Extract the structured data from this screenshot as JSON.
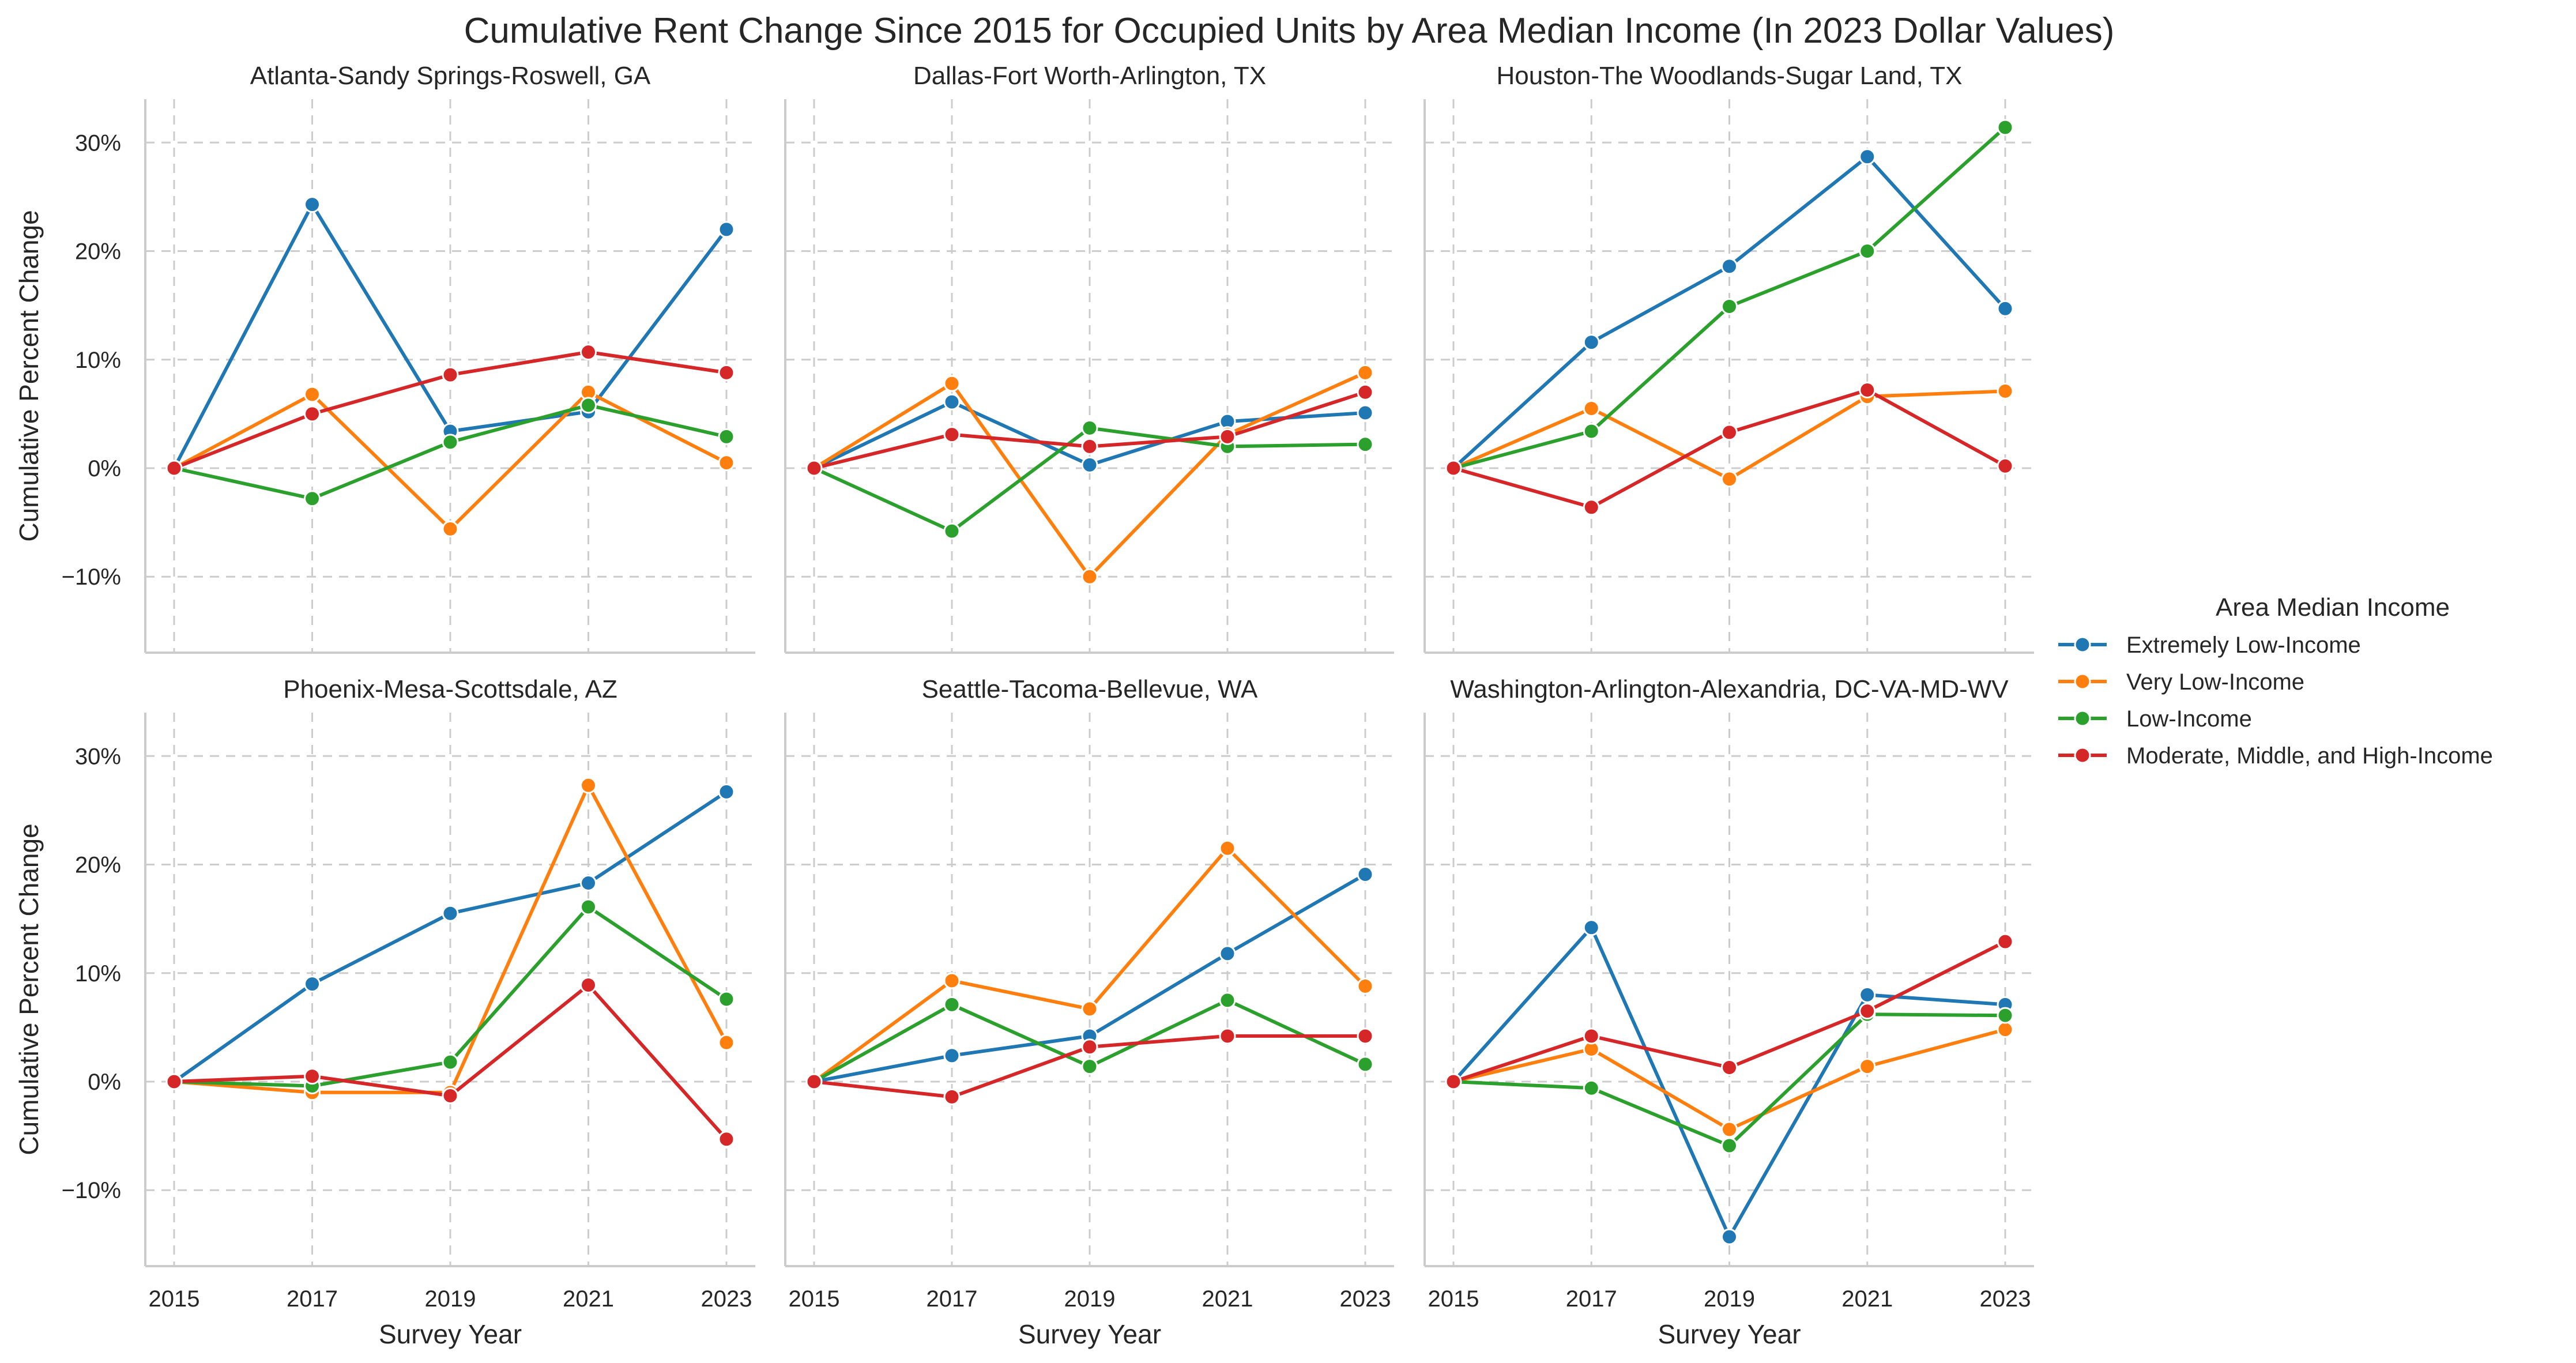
{
  "chart_data": {
    "type": "line",
    "title": "Cumulative Rent Change Since 2015 for Occupied Units by Area Median Income (In 2023 Dollar Values)",
    "xlabel": "Survey Year",
    "ylabel": "Cumulative Percent Change",
    "x": [
      2015,
      2017,
      2019,
      2021,
      2023
    ],
    "x_ticks": [
      "2015",
      "2017",
      "2019",
      "2021",
      "2023"
    ],
    "ylim": [
      -17,
      34
    ],
    "y_ticks": [
      -10,
      0,
      10,
      20,
      30
    ],
    "y_tick_labels": [
      "−10%",
      "0%",
      "10%",
      "20%",
      "30%"
    ],
    "grid": true,
    "legend": {
      "title": "Area Median Income",
      "placement": "right",
      "entries": [
        {
          "name": "Extremely Low-Income",
          "color": "#1f77b4"
        },
        {
          "name": "Very Low-Income",
          "color": "#ff7f0e"
        },
        {
          "name": "Low-Income",
          "color": "#2ca02c"
        },
        {
          "name": "Moderate, Middle, and High-Income",
          "color": "#d62728"
        }
      ]
    },
    "panels": [
      {
        "title": "Atlanta-Sandy Springs-Roswell, GA",
        "series": [
          {
            "name": "Extremely Low-Income",
            "values": [
              0,
              24.3,
              3.4,
              5.2,
              22.0
            ]
          },
          {
            "name": "Very Low-Income",
            "values": [
              0,
              6.8,
              -5.6,
              7.0,
              0.5
            ]
          },
          {
            "name": "Low-Income",
            "values": [
              0,
              -2.8,
              2.4,
              5.8,
              2.9
            ]
          },
          {
            "name": "Moderate, Middle, and High-Income",
            "values": [
              0,
              5.0,
              8.6,
              10.7,
              8.8
            ]
          }
        ]
      },
      {
        "title": "Dallas-Fort Worth-Arlington, TX",
        "series": [
          {
            "name": "Extremely Low-Income",
            "values": [
              0,
              6.1,
              0.3,
              4.3,
              5.1
            ]
          },
          {
            "name": "Very Low-Income",
            "values": [
              0,
              7.8,
              -10.0,
              3.1,
              8.8
            ]
          },
          {
            "name": "Low-Income",
            "values": [
              0,
              -5.8,
              3.7,
              2.0,
              2.2
            ]
          },
          {
            "name": "Moderate, Middle, and High-Income",
            "values": [
              0,
              3.1,
              2.0,
              2.9,
              7.0
            ]
          }
        ]
      },
      {
        "title": "Houston-The Woodlands-Sugar Land, TX",
        "series": [
          {
            "name": "Extremely Low-Income",
            "values": [
              0,
              11.6,
              18.6,
              28.7,
              14.7
            ]
          },
          {
            "name": "Very Low-Income",
            "values": [
              0,
              5.5,
              -1.0,
              6.6,
              7.1
            ]
          },
          {
            "name": "Low-Income",
            "values": [
              0,
              3.4,
              14.9,
              20.0,
              31.4
            ]
          },
          {
            "name": "Moderate, Middle, and High-Income",
            "values": [
              0,
              -3.6,
              3.3,
              7.2,
              0.2
            ]
          }
        ]
      },
      {
        "title": "Phoenix-Mesa-Scottsdale, AZ",
        "series": [
          {
            "name": "Extremely Low-Income",
            "values": [
              0,
              9.0,
              15.5,
              18.3,
              26.7
            ]
          },
          {
            "name": "Very Low-Income",
            "values": [
              0,
              -1.0,
              -1.0,
              27.3,
              3.6
            ]
          },
          {
            "name": "Low-Income",
            "values": [
              0,
              -0.4,
              1.8,
              16.1,
              7.6
            ]
          },
          {
            "name": "Moderate, Middle, and High-Income",
            "values": [
              0,
              0.5,
              -1.3,
              8.9,
              -5.3
            ]
          }
        ]
      },
      {
        "title": "Seattle-Tacoma-Bellevue, WA",
        "series": [
          {
            "name": "Extremely Low-Income",
            "values": [
              0,
              2.4,
              4.2,
              11.8,
              19.1
            ]
          },
          {
            "name": "Very Low-Income",
            "values": [
              0,
              9.3,
              6.7,
              21.5,
              8.8
            ]
          },
          {
            "name": "Low-Income",
            "values": [
              0,
              7.1,
              1.4,
              7.5,
              1.6
            ]
          },
          {
            "name": "Moderate, Middle, and High-Income",
            "values": [
              0,
              -1.4,
              3.2,
              4.2,
              4.2
            ]
          }
        ]
      },
      {
        "title": "Washington-Arlington-Alexandria, DC-VA-MD-WV",
        "series": [
          {
            "name": "Extremely Low-Income",
            "values": [
              0,
              14.2,
              -14.3,
              8.0,
              7.1
            ]
          },
          {
            "name": "Very Low-Income",
            "values": [
              0,
              3.0,
              -4.4,
              1.4,
              4.8
            ]
          },
          {
            "name": "Low-Income",
            "values": [
              0,
              -0.6,
              -5.9,
              6.2,
              6.1
            ]
          },
          {
            "name": "Moderate, Middle, and High-Income",
            "values": [
              0,
              4.2,
              1.3,
              6.5,
              12.9
            ]
          }
        ]
      }
    ]
  }
}
